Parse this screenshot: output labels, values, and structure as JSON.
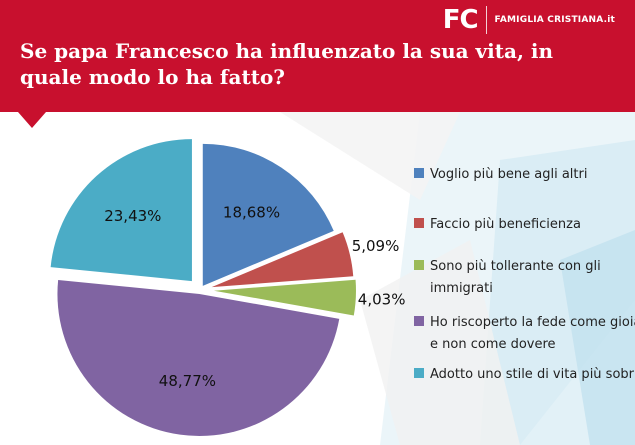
{
  "header": {
    "logo_mark": "FC",
    "logo_text": "FAMIGLIA CRISTIANA.it",
    "background_color": "#c8102e"
  },
  "chart_data": {
    "type": "pie",
    "title": "Se papa Francesco ha influenzato la sua vita, in quale modo lo ha fatto?",
    "exploded": true,
    "legend_position": "right",
    "series": [
      {
        "name": "Voglio più bene agli altri",
        "value": 18.68,
        "label": "18,68%",
        "color": "#4f81bd"
      },
      {
        "name": "Faccio più beneficienza",
        "value": 5.09,
        "label": "5,09%",
        "color": "#c0504d"
      },
      {
        "name": "Sono più tollerante con gli immigrati",
        "value": 4.03,
        "label": "4,03%",
        "color": "#9bbb59"
      },
      {
        "name": "Ho riscoperto la fede come gioia e non come dovere",
        "value": 48.77,
        "label": "48,77%",
        "color": "#8064a2"
      },
      {
        "name": "Adotto uno stile di vita più sobrio",
        "value": 23.43,
        "label": "23,43%",
        "color": "#4bacc6"
      }
    ]
  }
}
